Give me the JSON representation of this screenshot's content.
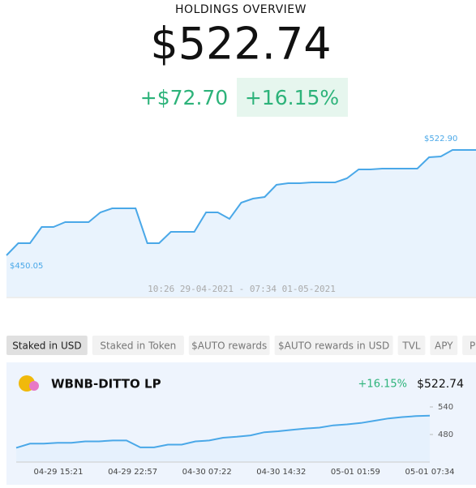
{
  "header": {
    "title": "HOLDINGS OVERVIEW",
    "value": "$522.74",
    "change": "+$72.70",
    "percent": "+16.15%"
  },
  "main_chart": {
    "type": "line",
    "color": "#4aa8e8",
    "max_label": "$522.90",
    "min_label": "$450.05",
    "range": "10:26 29-04-2021 - 07:34 01-05-2021",
    "values": [
      450.05,
      458.46,
      458.46,
      469.66,
      469.66,
      473.03,
      473.03,
      473.03,
      479.75,
      482.55,
      482.55,
      482.55,
      458.46,
      458.46,
      466.3,
      466.3,
      466.3,
      479.75,
      479.75,
      475.27,
      486.48,
      489.28,
      490.4,
      498.8,
      499.93,
      499.93,
      500.49,
      500.49,
      500.49,
      503.29,
      509.45,
      509.45,
      510.01,
      510.01,
      510.01,
      510.01,
      517.86,
      518.42,
      522.9,
      522.9,
      522.9
    ]
  },
  "tabs": [
    "Staked in USD",
    "Staked in Token",
    "$AUTO rewards",
    "$AUTO rewards in USD",
    "TVL",
    "APY",
    "Price"
  ],
  "pool": {
    "name": "WBNB-DITTO LP",
    "percent": "+16.15%",
    "value": "$522.74",
    "chart": {
      "type": "line",
      "color": "#4aa8e8",
      "ylim": [
        420,
        560
      ],
      "yticks": [
        540,
        480
      ],
      "categories": [
        "04-29 15:21",
        "04-29 22:57",
        "04-30 07:22",
        "04-30 14:32",
        "05-01 01:59",
        "05-01 07:34"
      ],
      "values": [
        451,
        460,
        460,
        462,
        462,
        465,
        465,
        467,
        467,
        452,
        452,
        458,
        458,
        465,
        467,
        473,
        475,
        478,
        485,
        487,
        490,
        493,
        495,
        500,
        502,
        505,
        510,
        515,
        518,
        520,
        521
      ]
    }
  }
}
